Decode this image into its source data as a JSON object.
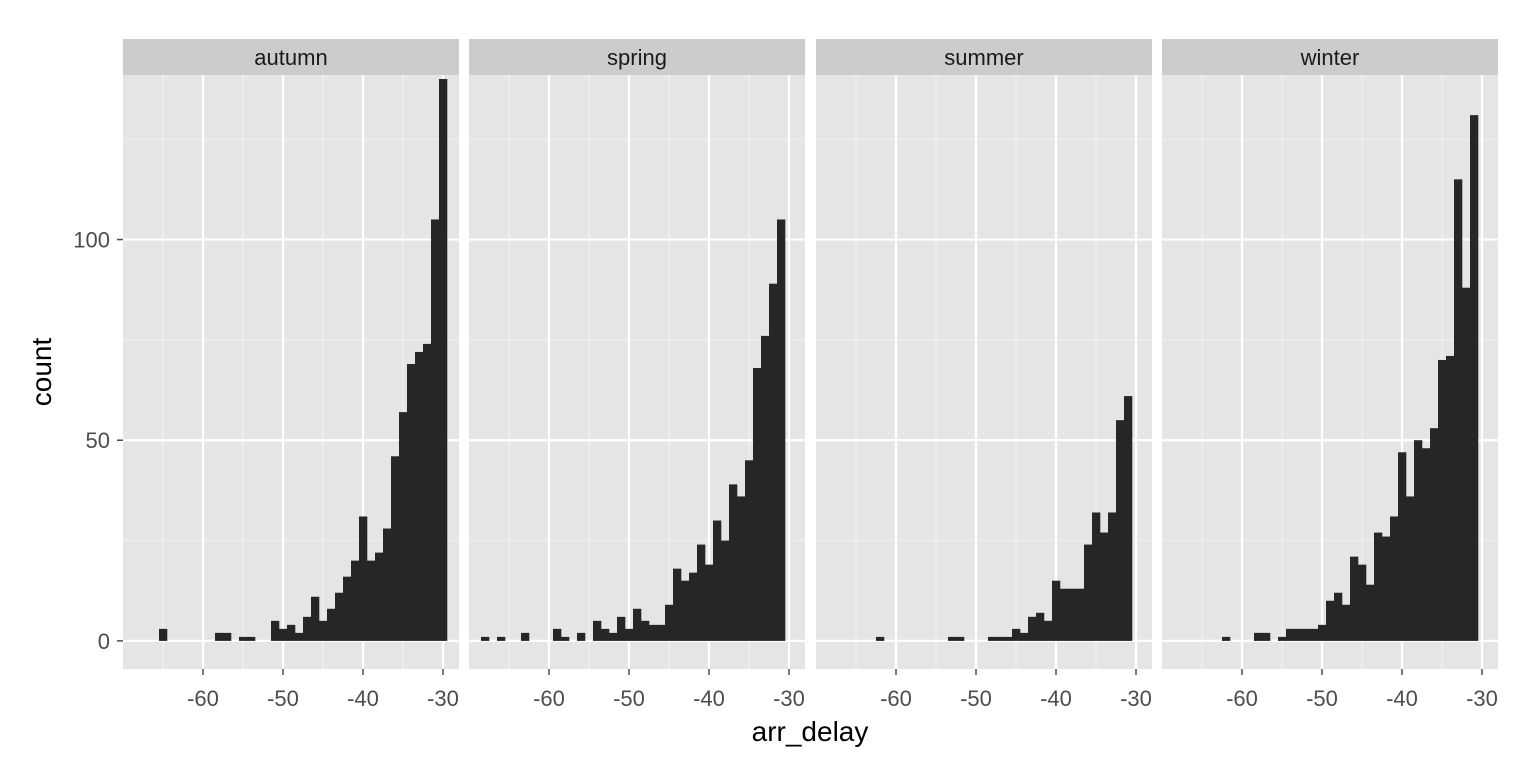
{
  "chart_data": {
    "type": "bar",
    "subtype": "faceted-histogram",
    "xlabel": "arr_delay",
    "ylabel": "count",
    "xlim": [
      -70,
      -28
    ],
    "ylim": [
      -7,
      141
    ],
    "x_ticks": [
      -60,
      -50,
      -40,
      -30
    ],
    "x_tick_labels": [
      "-60",
      "-50",
      "-40",
      "-30"
    ],
    "y_ticks": [
      0,
      50,
      100
    ],
    "y_tick_labels": [
      "0",
      "50",
      "100"
    ],
    "bin_width": 1,
    "grid": true,
    "colors": {
      "panel_bg": "#e5e5e5",
      "strip_bg": "#cccccc",
      "bar": "#262626",
      "grid": "#ffffff",
      "tick_text": "#4d4d4d"
    },
    "facets": [
      {
        "name": "autumn",
        "bins": [
          [
            -65,
            3
          ],
          [
            -58,
            2
          ],
          [
            -57,
            2
          ],
          [
            -55,
            1
          ],
          [
            -54,
            1
          ],
          [
            -51,
            5
          ],
          [
            -50,
            3
          ],
          [
            -49,
            4
          ],
          [
            -48,
            2
          ],
          [
            -47,
            6
          ],
          [
            -46,
            11
          ],
          [
            -45,
            5
          ],
          [
            -44,
            8
          ],
          [
            -43,
            12
          ],
          [
            -42,
            16
          ],
          [
            -41,
            20
          ],
          [
            -40,
            31
          ],
          [
            -39,
            20
          ],
          [
            -38,
            22
          ],
          [
            -37,
            28
          ],
          [
            -36,
            46
          ],
          [
            -35,
            57
          ],
          [
            -34,
            69
          ],
          [
            -33,
            72
          ],
          [
            -32,
            74
          ],
          [
            -31,
            105
          ],
          [
            -30,
            140
          ]
        ]
      },
      {
        "name": "spring",
        "bins": [
          [
            -68,
            1
          ],
          [
            -66,
            1
          ],
          [
            -63,
            2
          ],
          [
            -59,
            3
          ],
          [
            -58,
            1
          ],
          [
            -56,
            2
          ],
          [
            -54,
            5
          ],
          [
            -53,
            3
          ],
          [
            -52,
            2
          ],
          [
            -51,
            6
          ],
          [
            -50,
            3
          ],
          [
            -49,
            8
          ],
          [
            -48,
            5
          ],
          [
            -47,
            4
          ],
          [
            -46,
            4
          ],
          [
            -45,
            9
          ],
          [
            -44,
            18
          ],
          [
            -43,
            15
          ],
          [
            -42,
            17
          ],
          [
            -41,
            24
          ],
          [
            -40,
            19
          ],
          [
            -39,
            30
          ],
          [
            -38,
            25
          ],
          [
            -37,
            39
          ],
          [
            -36,
            36
          ],
          [
            -35,
            45
          ],
          [
            -34,
            68
          ],
          [
            -33,
            76
          ],
          [
            -32,
            89
          ],
          [
            -31,
            105
          ]
        ]
      },
      {
        "name": "summer",
        "bins": [
          [
            -62,
            1
          ],
          [
            -53,
            1
          ],
          [
            -52,
            1
          ],
          [
            -48,
            1
          ],
          [
            -47,
            1
          ],
          [
            -46,
            1
          ],
          [
            -45,
            3
          ],
          [
            -44,
            2
          ],
          [
            -43,
            6
          ],
          [
            -42,
            7
          ],
          [
            -41,
            5
          ],
          [
            -40,
            15
          ],
          [
            -39,
            13
          ],
          [
            -38,
            13
          ],
          [
            -37,
            13
          ],
          [
            -36,
            24
          ],
          [
            -35,
            32
          ],
          [
            -34,
            27
          ],
          [
            -33,
            32
          ],
          [
            -32,
            55
          ],
          [
            -31,
            61
          ]
        ]
      },
      {
        "name": "winter",
        "bins": [
          [
            -62,
            1
          ],
          [
            -58,
            2
          ],
          [
            -57,
            2
          ],
          [
            -55,
            1
          ],
          [
            -54,
            3
          ],
          [
            -53,
            3
          ],
          [
            -52,
            3
          ],
          [
            -51,
            3
          ],
          [
            -50,
            4
          ],
          [
            -49,
            10
          ],
          [
            -48,
            12
          ],
          [
            -47,
            9
          ],
          [
            -46,
            21
          ],
          [
            -45,
            19
          ],
          [
            -44,
            14
          ],
          [
            -43,
            27
          ],
          [
            -42,
            26
          ],
          [
            -41,
            31
          ],
          [
            -40,
            47
          ],
          [
            -39,
            36
          ],
          [
            -38,
            50
          ],
          [
            -37,
            48
          ],
          [
            -36,
            53
          ],
          [
            -35,
            70
          ],
          [
            -34,
            71
          ],
          [
            -33,
            115
          ],
          [
            -32,
            88
          ],
          [
            -31,
            131
          ]
        ]
      }
    ]
  }
}
